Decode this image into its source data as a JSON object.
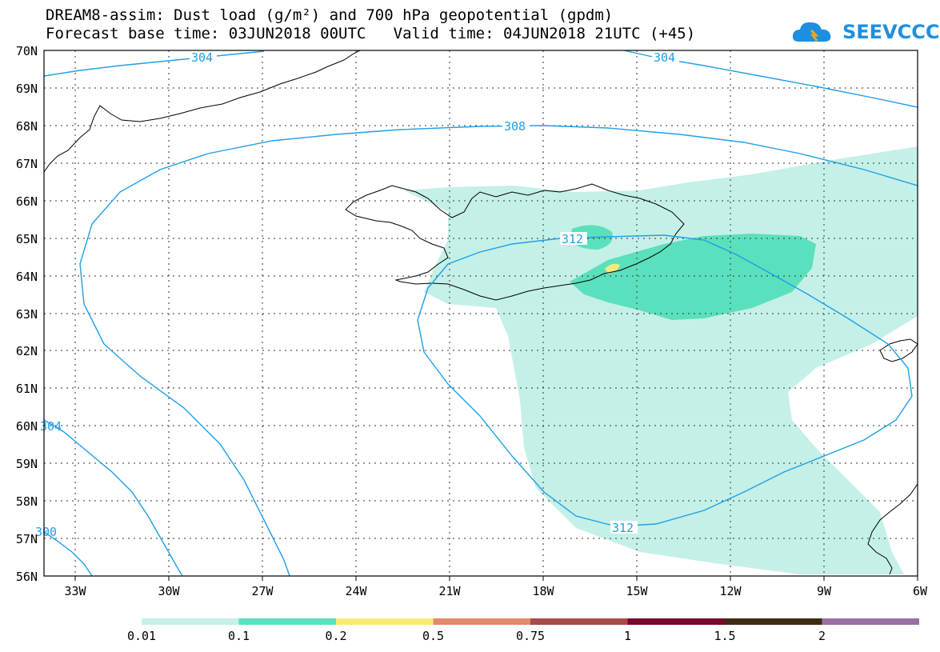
{
  "title_line1": "DREAM8-assim: Dust load (g/m²) and 700 hPa geopotential (gpdm)",
  "title_line2": "Forecast base time: 03JUN2018 00UTC   Valid time: 04JUN2018 21UTC (+45)",
  "logo_text": "SEEVCCC",
  "lat_labels": [
    "70N",
    "69N",
    "68N",
    "67N",
    "66N",
    "65N",
    "64N",
    "63N",
    "62N",
    "61N",
    "60N",
    "59N",
    "58N",
    "57N",
    "56N"
  ],
  "lon_labels": [
    "33W",
    "30W",
    "27W",
    "24W",
    "21W",
    "18W",
    "15W",
    "12W",
    "9W",
    "6W"
  ],
  "contour_labels": [
    "304",
    "304",
    "308",
    "312",
    "312",
    "304",
    "300"
  ],
  "legend": {
    "colors": [
      "#c4f0e8",
      "#5be0bd",
      "#f8ea78",
      "#e4896a",
      "#a64a4c",
      "#7a0a2c",
      "#3e2b14",
      "#9870a4"
    ],
    "labels": [
      "0.01",
      "0.1",
      "0.2",
      "0.5",
      "0.75",
      "1",
      "1.5",
      "2"
    ]
  },
  "colors": {
    "contour": "#1f9fe6",
    "coast": "#000000",
    "grid": "#333333"
  }
}
